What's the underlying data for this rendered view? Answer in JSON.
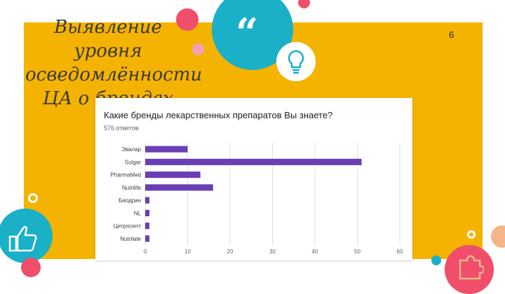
{
  "slide": {
    "title": "Выявление уровня осведомлённости ЦА о брендах",
    "quote_mark": "“",
    "page_number": "6"
  },
  "icons": {
    "idea": "lightbulb-icon",
    "approve": "thumbs-up-icon",
    "puzzle": "puzzle-icon"
  },
  "colors": {
    "panel": "#f5b301",
    "teal": "#1ab0c8",
    "pink": "#f04e6a",
    "bar": "#6a3fb5"
  },
  "chart_data": {
    "type": "bar",
    "orientation": "horizontal",
    "title": "Какие бренды лекарственных препаратов Вы знаете?",
    "subtitle": "576 ответов",
    "categories": [
      "Эвалар",
      "Sulgar",
      "PharmaMed",
      "Nutrilife",
      "Биодрин",
      "NL",
      "Цитросепт",
      "Nutrilate"
    ],
    "values": [
      10,
      51,
      13,
      16,
      1,
      1,
      1,
      1
    ],
    "xlim": [
      0,
      60
    ],
    "xticks": [
      "0",
      "10",
      "20",
      "30",
      "40",
      "50",
      "60"
    ],
    "grid": true
  }
}
